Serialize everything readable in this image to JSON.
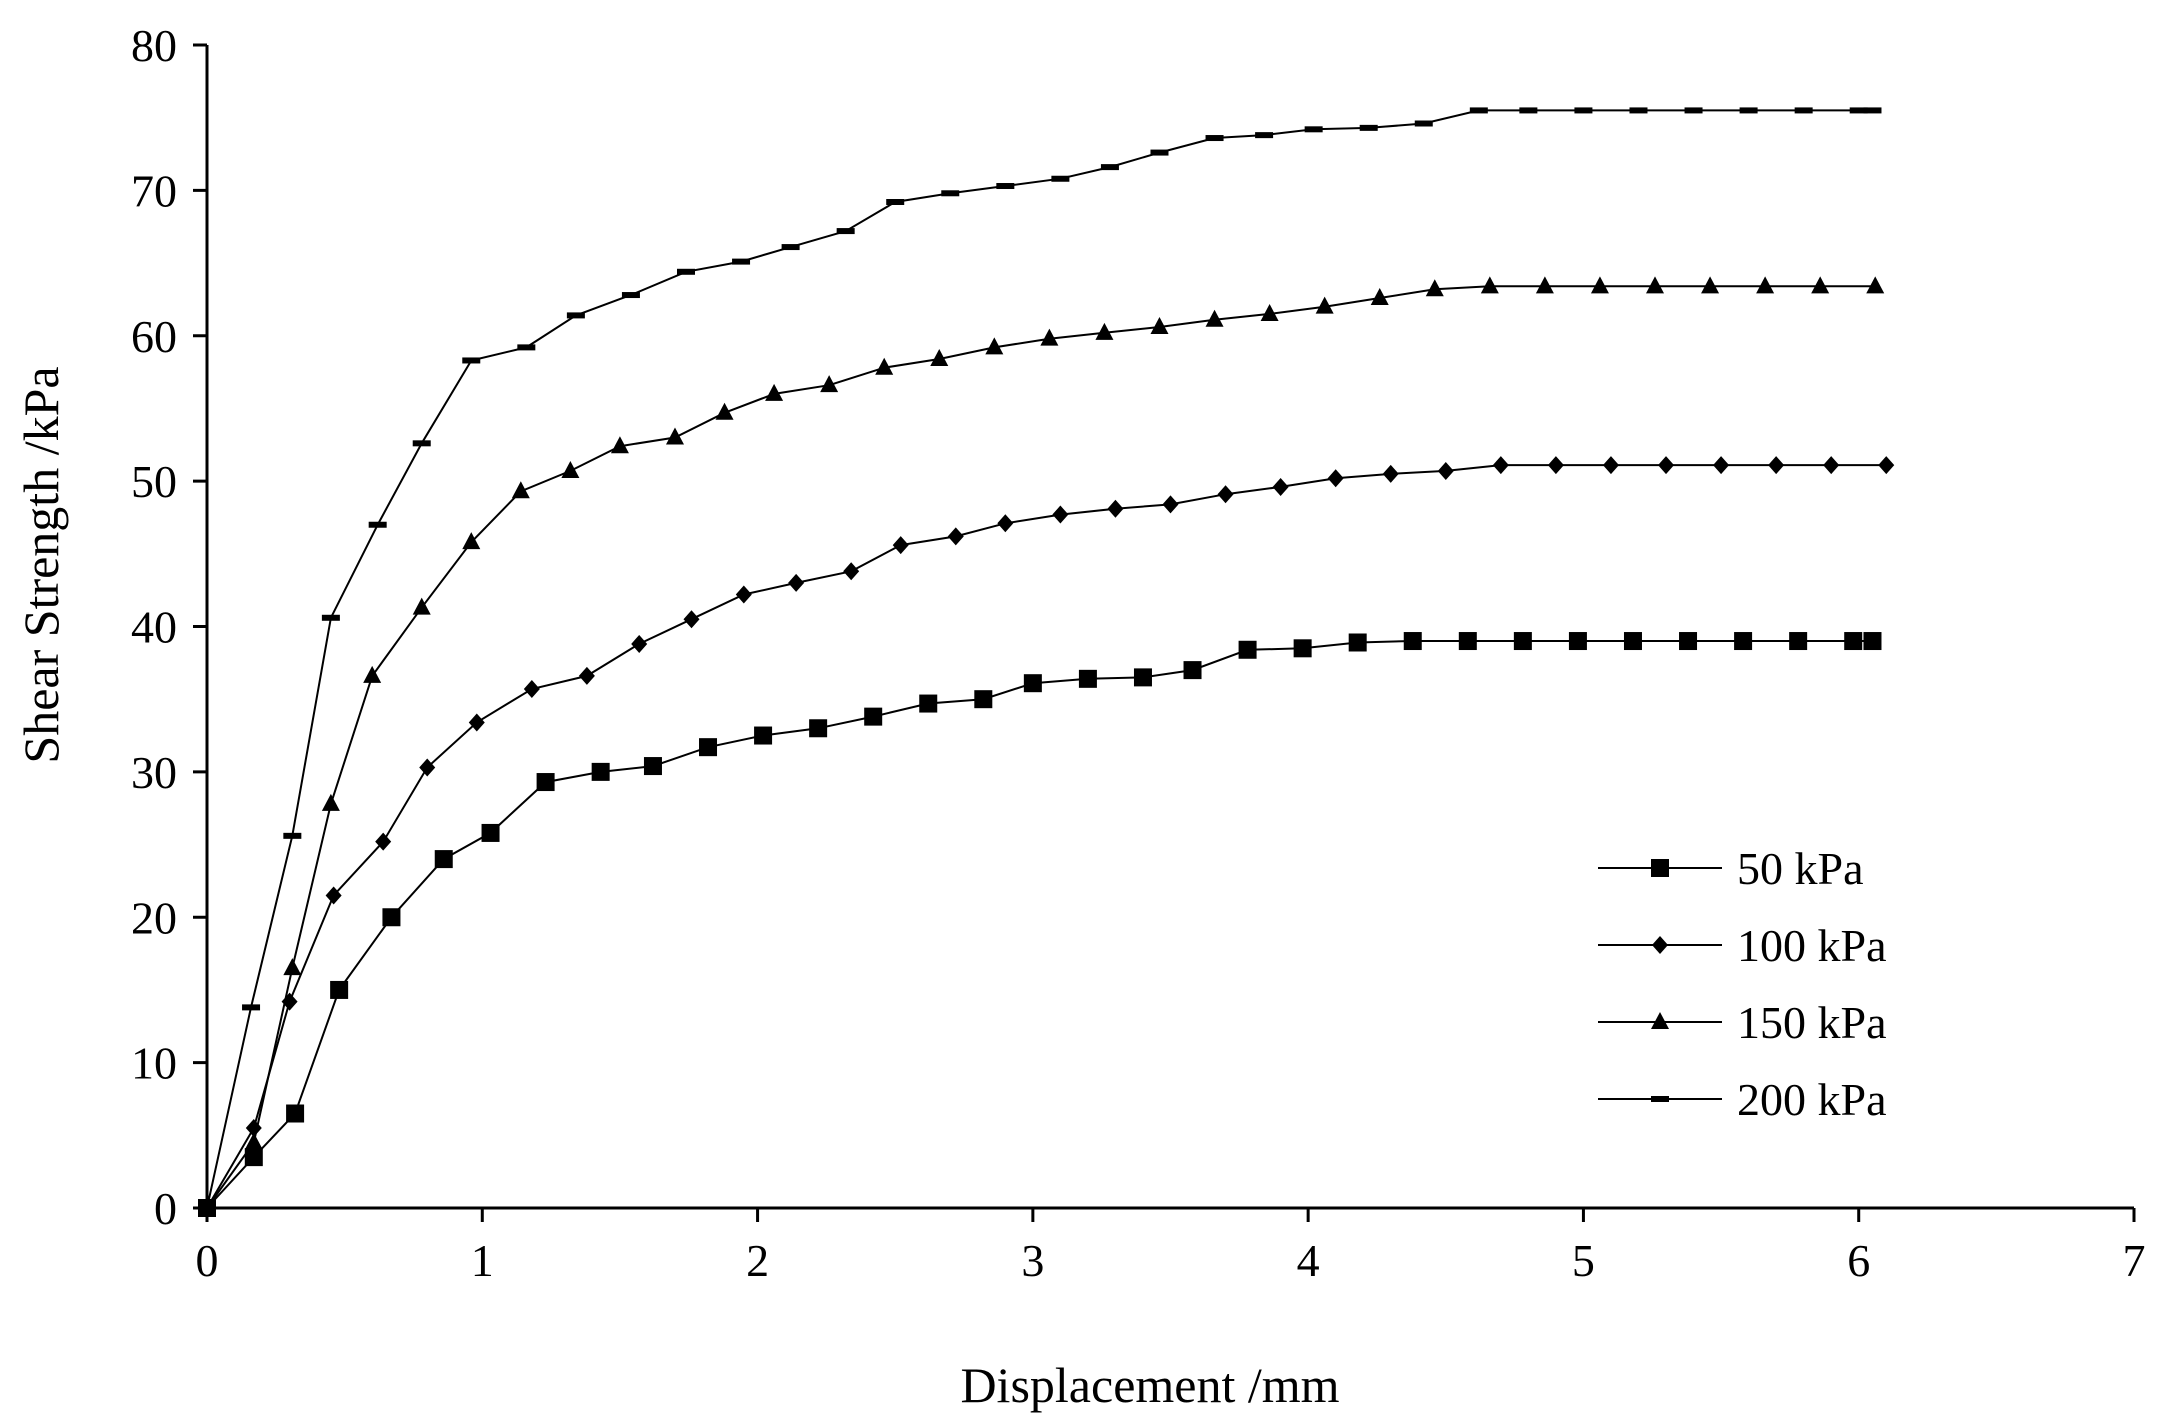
{
  "chart_data": {
    "type": "line",
    "title": "",
    "xlabel": "Displacement  /mm",
    "ylabel": "Shear Strength  /kPa",
    "xlim": [
      0,
      7
    ],
    "ylim": [
      0,
      80
    ],
    "xticks": [
      0,
      1,
      2,
      3,
      4,
      5,
      6,
      7
    ],
    "yticks": [
      0,
      10,
      20,
      30,
      40,
      50,
      60,
      70,
      80
    ],
    "grid": false,
    "legend_position": "right",
    "series": [
      {
        "name": "50 kPa",
        "marker": "square",
        "x": [
          0,
          0.17,
          0.32,
          0.48,
          0.67,
          0.86,
          1.03,
          1.23,
          1.43,
          1.62,
          1.82,
          2.02,
          2.22,
          2.42,
          2.62,
          2.82,
          3.0,
          3.2,
          3.4,
          3.58,
          3.78,
          3.98,
          4.18,
          4.38,
          4.58,
          4.78,
          4.98,
          5.18,
          5.38,
          5.58,
          5.78,
          5.98,
          6.05
        ],
        "y": [
          0,
          3.5,
          6.5,
          15,
          20,
          24,
          25.8,
          29.3,
          30.0,
          30.4,
          31.7,
          32.5,
          33.0,
          33.8,
          34.7,
          35.0,
          36.1,
          36.4,
          36.5,
          37.0,
          38.4,
          38.5,
          38.9,
          39.0,
          39.0,
          39.0,
          39.0,
          39.0,
          39.0,
          39.0,
          39.0,
          39.0,
          39.0
        ]
      },
      {
        "name": "100 kPa",
        "marker": "diamond",
        "x": [
          0,
          0.17,
          0.3,
          0.46,
          0.64,
          0.8,
          0.98,
          1.18,
          1.38,
          1.57,
          1.76,
          1.95,
          2.14,
          2.34,
          2.52,
          2.72,
          2.9,
          3.1,
          3.3,
          3.5,
          3.7,
          3.9,
          4.1,
          4.3,
          4.5,
          4.7,
          4.9,
          5.1,
          5.3,
          5.5,
          5.7,
          5.9,
          6.1
        ],
        "y": [
          0,
          5.5,
          14.2,
          21.5,
          25.2,
          30.3,
          33.4,
          35.7,
          36.6,
          38.8,
          40.5,
          42.2,
          43.0,
          43.8,
          45.6,
          46.2,
          47.1,
          47.7,
          48.1,
          48.4,
          49.1,
          49.6,
          50.2,
          50.5,
          50.7,
          51.1,
          51.1,
          51.1,
          51.1,
          51.1,
          51.1,
          51.1,
          51.1
        ]
      },
      {
        "name": "150 kPa",
        "marker": "triangle",
        "x": [
          0,
          0.17,
          0.31,
          0.45,
          0.6,
          0.78,
          0.96,
          1.14,
          1.32,
          1.5,
          1.7,
          1.88,
          2.06,
          2.26,
          2.46,
          2.66,
          2.86,
          3.06,
          3.26,
          3.46,
          3.66,
          3.86,
          4.06,
          4.26,
          4.46,
          4.66,
          4.86,
          5.06,
          5.26,
          5.46,
          5.66,
          5.86,
          6.06
        ],
        "y": [
          0,
          4.5,
          16.5,
          27.8,
          36.6,
          41.3,
          45.8,
          49.3,
          50.7,
          52.4,
          53.0,
          54.7,
          56.0,
          56.6,
          57.8,
          58.4,
          59.2,
          59.8,
          60.2,
          60.6,
          61.1,
          61.5,
          62.0,
          62.6,
          63.2,
          63.4,
          63.4,
          63.4,
          63.4,
          63.4,
          63.4,
          63.4,
          63.4
        ]
      },
      {
        "name": "200 kPa",
        "marker": "dash",
        "x": [
          0,
          0.16,
          0.31,
          0.45,
          0.62,
          0.78,
          0.96,
          1.16,
          1.34,
          1.54,
          1.74,
          1.94,
          2.12,
          2.32,
          2.5,
          2.7,
          2.9,
          3.1,
          3.28,
          3.46,
          3.66,
          3.84,
          4.02,
          4.22,
          4.42,
          4.62,
          4.8,
          5.0,
          5.2,
          5.4,
          5.6,
          5.8,
          6.0,
          6.05
        ],
        "y": [
          0,
          13.8,
          25.6,
          40.6,
          47.0,
          52.6,
          58.3,
          59.2,
          61.4,
          62.8,
          64.4,
          65.1,
          66.1,
          67.2,
          69.2,
          69.8,
          70.3,
          70.8,
          71.6,
          72.6,
          73.6,
          73.8,
          74.2,
          74.3,
          74.6,
          75.5,
          75.5,
          75.5,
          75.5,
          75.5,
          75.5,
          75.5,
          75.5,
          75.5
        ]
      }
    ]
  }
}
